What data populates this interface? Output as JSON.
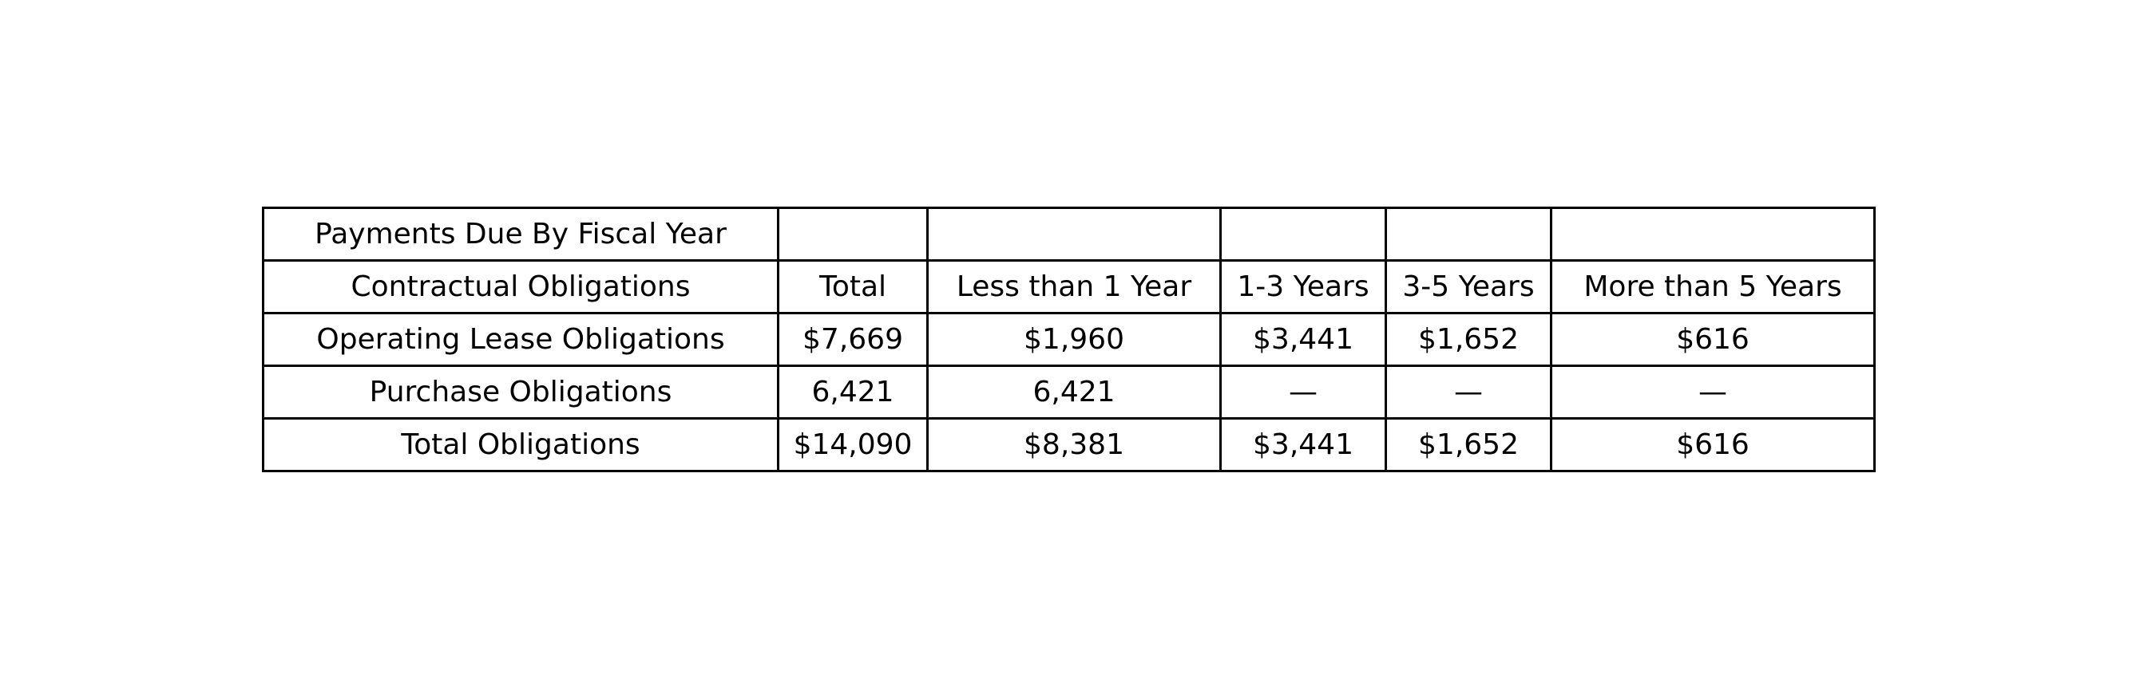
{
  "table": {
    "caption_row": [
      "Payments Due By Fiscal Year",
      "",
      "",
      "",
      "",
      ""
    ],
    "header_row": [
      "Contractual Obligations",
      "Total",
      "Less than 1 Year",
      "1-3 Years",
      "3-5 Years",
      "More than 5 Years"
    ],
    "rows": [
      [
        "Operating Lease Obligations",
        "$7,669",
        "$1,960",
        "$3,441",
        "$1,652",
        "$616"
      ],
      [
        "Purchase Obligations",
        "6,421",
        "6,421",
        "—",
        "—",
        "—"
      ],
      [
        "Total Obligations",
        "$14,090",
        "$8,381",
        "$3,441",
        "$1,652",
        "$616"
      ]
    ]
  }
}
